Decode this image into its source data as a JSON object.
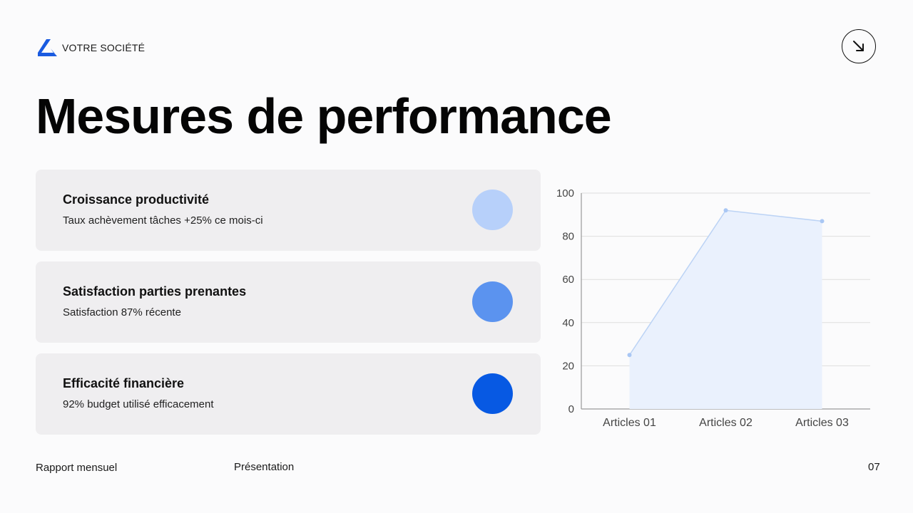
{
  "brand": {
    "name": "VOTRE SOCIÉTÉ",
    "logo_icon": "company-logo-icon",
    "logo_color": "#1a5be0"
  },
  "nav": {
    "icon": "arrow-down-right-icon"
  },
  "title": "Mesures de performance",
  "metrics": [
    {
      "title": "Croissance productivité",
      "description": "Taux achèvement tâches +25% ce mois-ci",
      "dot_color": "#b7d0fa"
    },
    {
      "title": "Satisfaction parties prenantes",
      "description": "Satisfaction 87% récente",
      "dot_color": "#5b93ef"
    },
    {
      "title": "Efficacité financière",
      "description": "92% budget utilisé efficacement",
      "dot_color": "#0759e3"
    }
  ],
  "chart_data": {
    "type": "area",
    "categories": [
      "Articles 01",
      "Articles 02",
      "Articles 03"
    ],
    "series": [
      {
        "values": [
          25,
          92,
          87
        ]
      }
    ],
    "ylim": [
      0,
      100
    ],
    "yticks": [
      0,
      20,
      40,
      60,
      80,
      100
    ],
    "grid": true,
    "line_color": "#bcd3f5",
    "fill_color": "#eaf1fd"
  },
  "footer": {
    "left": "Rapport mensuel",
    "center": "Présentation",
    "page_number": "07"
  }
}
